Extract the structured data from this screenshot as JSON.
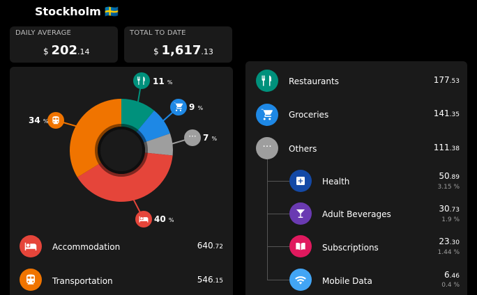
{
  "header": {
    "title": "Stockholm",
    "flag": "🇸🇪"
  },
  "stats": {
    "daily": {
      "label": "DAILY AVERAGE",
      "currency": "$",
      "whole": "202",
      "decimal": ".14"
    },
    "total": {
      "label": "TOTAL TO DATE",
      "currency": "$",
      "whole": "1,617",
      "decimal": ".13"
    }
  },
  "chart_data": {
    "type": "pie",
    "categories": [
      "Restaurants",
      "Groceries",
      "Others",
      "Accommodation",
      "Transportation"
    ],
    "values": [
      177.53,
      141.35,
      111.38,
      640.72,
      546.15
    ],
    "percent_labels": [
      "11",
      "9",
      "7",
      "40",
      "34"
    ],
    "percent_symbol": "%",
    "colors": [
      "#00917c",
      "#1e88e5",
      "#9e9e9e",
      "#e5453a",
      "#f07400"
    ]
  },
  "left_list": [
    {
      "label": "Accommodation",
      "whole": "640",
      "decimal": ".72",
      "icon": "bed-icon",
      "color": "#e5453a"
    },
    {
      "label": "Transportation",
      "whole": "546",
      "decimal": ".15",
      "icon": "train-icon",
      "color": "#f07400"
    }
  ],
  "right_list": [
    {
      "label": "Restaurants",
      "whole": "177",
      "decimal": ".53",
      "icon": "fork-knife-icon",
      "color": "#00917c"
    },
    {
      "label": "Groceries",
      "whole": "141",
      "decimal": ".35",
      "icon": "cart-icon",
      "color": "#1e88e5"
    },
    {
      "label": "Others",
      "whole": "111",
      "decimal": ".38",
      "icon": "more-icon",
      "color": "#9e9e9e"
    }
  ],
  "sub_list": [
    {
      "label": "Health",
      "whole": "50",
      "decimal": ".89",
      "pct": "3.15 %",
      "icon": "health-icon",
      "color": "#1449a6"
    },
    {
      "label": "Adult Beverages",
      "whole": "30",
      "decimal": ".73",
      "pct": "1.9 %",
      "icon": "cocktail-icon",
      "color": "#6a3ab2"
    },
    {
      "label": "Subscriptions",
      "whole": "23",
      "decimal": ".30",
      "pct": "1.44 %",
      "icon": "book-icon",
      "color": "#e0195e"
    },
    {
      "label": "Mobile Data",
      "whole": "6",
      "decimal": ".46",
      "pct": "0.4 %",
      "icon": "wifi-icon",
      "color": "#42a5f5"
    }
  ]
}
